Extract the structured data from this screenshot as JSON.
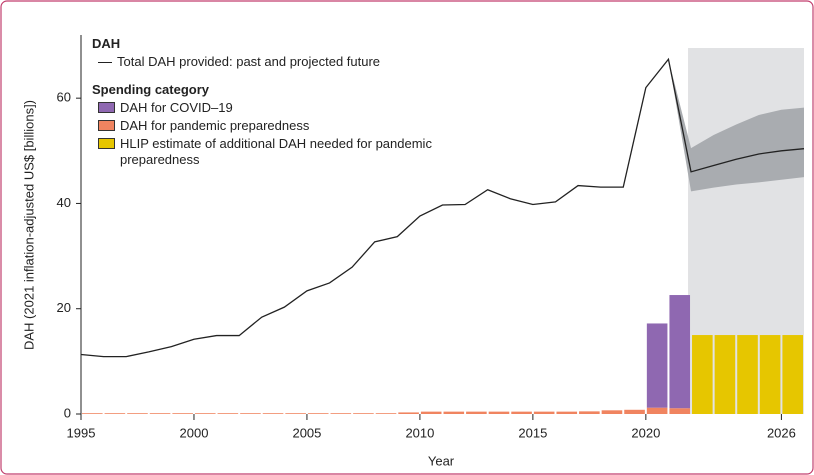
{
  "chart_data": {
    "type": "line-bar",
    "legend_title_line": "DAH",
    "legend_title_bars": "Spending category",
    "xlabel": "Year",
    "ylabel": "DAH (2021 inflation-adjusted US$ [billions])",
    "xlim": [
      1995,
      2027
    ],
    "ylim": [
      0,
      72
    ],
    "xticks": [
      1995,
      2000,
      2005,
      2010,
      2015,
      2020,
      2026
    ],
    "yticks": [
      0,
      20,
      40,
      60
    ],
    "projection_shade": [
      2022,
      2027
    ],
    "line": {
      "name": "Total DAH provided: past and projected future",
      "color": "#222222",
      "x": [
        1995,
        1996,
        1997,
        1998,
        1999,
        2000,
        2001,
        2002,
        2003,
        2004,
        2005,
        2006,
        2007,
        2008,
        2009,
        2010,
        2011,
        2012,
        2013,
        2014,
        2015,
        2016,
        2017,
        2018,
        2019,
        2020,
        2021,
        2022,
        2023,
        2024,
        2025,
        2026,
        2027
      ],
      "values": [
        11.3,
        10.9,
        10.9,
        11.8,
        12.8,
        14.2,
        14.9,
        14.9,
        18.4,
        20.3,
        23.4,
        24.9,
        27.9,
        32.7,
        33.7,
        37.6,
        39.7,
        39.8,
        42.6,
        40.9,
        39.8,
        40.3,
        43.4,
        43.1,
        43.1,
        62.0,
        67.4,
        46.0,
        47.2,
        48.4,
        49.4,
        50.0,
        50.4
      ]
    },
    "projection_band": {
      "color": "#a9acb0",
      "x": [
        2021,
        2022,
        2023,
        2024,
        2025,
        2026,
        2027
      ],
      "upper": [
        67.4,
        50.5,
        53.0,
        55.0,
        56.8,
        57.8,
        58.2
      ],
      "lower": [
        67.4,
        42.3,
        43.0,
        43.6,
        44.0,
        44.5,
        45.0
      ]
    },
    "series": [
      {
        "name": "DAH for COVID–19",
        "color": "#8f68b1",
        "x": [
          2020,
          2021
        ],
        "values": [
          16.0,
          21.5
        ]
      },
      {
        "name": "DAH for pandemic preparedness",
        "color": "#f08460",
        "x": [
          1995,
          1996,
          1997,
          1998,
          1999,
          2000,
          2001,
          2002,
          2003,
          2004,
          2005,
          2006,
          2007,
          2008,
          2009,
          2010,
          2011,
          2012,
          2013,
          2014,
          2015,
          2016,
          2017,
          2018,
          2019,
          2020,
          2021
        ],
        "values": [
          0.15,
          0.15,
          0.15,
          0.15,
          0.15,
          0.15,
          0.15,
          0.15,
          0.15,
          0.15,
          0.15,
          0.15,
          0.15,
          0.15,
          0.3,
          0.45,
          0.45,
          0.45,
          0.45,
          0.45,
          0.45,
          0.45,
          0.5,
          0.7,
          0.8,
          1.2,
          1.1
        ]
      },
      {
        "name": "HLIP estimate of additional DAH needed for pandemic preparedness",
        "color": "#e6c600",
        "x": [
          2022,
          2023,
          2024,
          2025,
          2026
        ],
        "values": [
          15.0,
          15.0,
          15.0,
          15.0,
          15.0
        ]
      }
    ]
  }
}
